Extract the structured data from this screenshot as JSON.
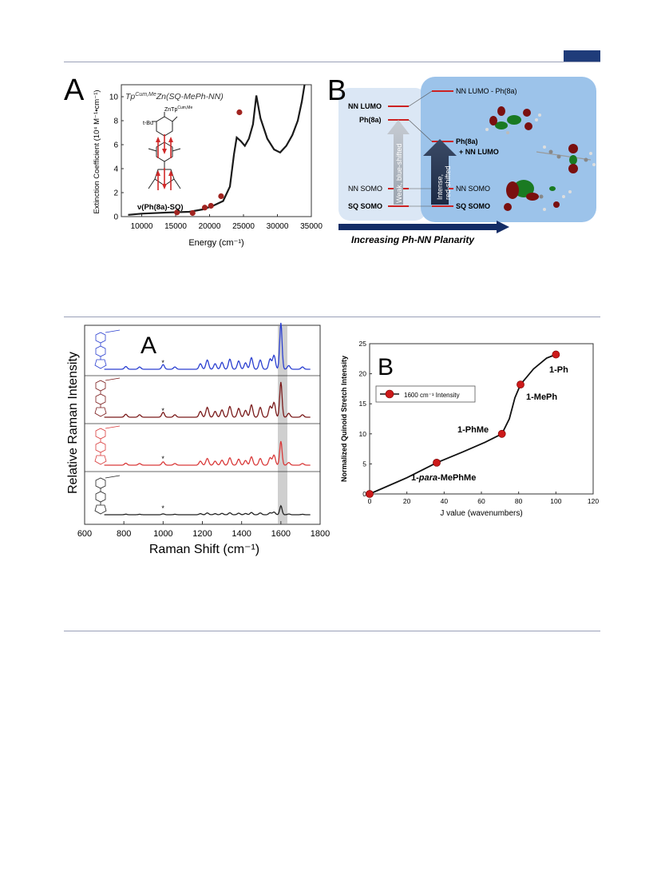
{
  "figure1": {
    "panelA": {
      "label": "A",
      "compound_title_base": "Tp",
      "compound_title_sup": "Cum,Me",
      "compound_title_rest": "Zn(SQ-MePh-NN)",
      "mol_zn": "ZnTp",
      "mol_zn_sup": "Cum,Me",
      "mol_tbu": "t-Bu",
      "mol_caption": "ν(Ph(8a)-SQ)",
      "ylabel": "Extinction Coefficient (10⁴ M⁻¹•cm⁻¹)",
      "xlabel": "Energy (cm⁻¹)",
      "xticks": [
        "10000",
        "15000",
        "20000",
        "25000",
        "30000",
        "35000"
      ],
      "yticks": [
        "0",
        "2",
        "4",
        "6",
        "8",
        "10"
      ]
    },
    "panelB": {
      "label": "B",
      "levels_left": [
        "NN LUMO",
        "Ph(8a)",
        "NN SOMO",
        "SQ SOMO"
      ],
      "levels_right": [
        "NN LUMO - Ph(8a)",
        "Ph(8a)",
        "+ NN LUMO",
        "NN SOMO",
        "SQ SOMO"
      ],
      "arrow_weak": "Weak, blue-shifted",
      "arrow_intense_1": "Intense,",
      "arrow_intense_2": "red-shifted",
      "bottom_label": "Increasing Ph-NN Planarity"
    }
  },
  "figure2": {
    "panelA": {
      "label": "A",
      "ylabel": "Relative Raman Intensity",
      "xlabel": "Raman Shift (cm⁻¹)",
      "xticks": [
        "600",
        "800",
        "1000",
        "1200",
        "1400",
        "1600",
        "1800"
      ],
      "star": "*",
      "trace_colors": [
        "#2a3fd0",
        "#7a1a1a",
        "#d93a3a",
        "#222222"
      ]
    },
    "panelB": {
      "label": "B",
      "ylabel": "Normalized Quinoid Stretch Intensity",
      "xlabel": "J value (wavenumbers)",
      "legend": "1600 cm⁻¹ Intensity",
      "point_labels": [
        "1-para-MePhMe",
        "1-PhMe",
        "1-MePh",
        "1-Ph"
      ]
    }
  },
  "chart_data": [
    {
      "type": "scatter",
      "xlabel": "J value (wavenumbers)",
      "ylabel": "Normalized Quinoid Stretch Intensity",
      "xlim": [
        0,
        120
      ],
      "ylim": [
        0,
        25
      ],
      "series": [
        {
          "name": "1600 cm⁻¹ Intensity",
          "x": [
            0,
            36,
            71,
            81,
            100
          ],
          "y": [
            0,
            5.2,
            10.0,
            18.2,
            23.2
          ]
        }
      ]
    },
    {
      "type": "scatter",
      "xlabel": "Energy (cm⁻¹)",
      "ylabel": "Extinction Coefficient (10⁴ M⁻¹•cm⁻¹)",
      "xlim": [
        7000,
        35000
      ],
      "ylim": [
        0,
        11
      ],
      "series": [
        {
          "x": [
            15200,
            17500,
            19300,
            20200,
            21700,
            24400
          ],
          "y": [
            0.35,
            0.3,
            0.75,
            0.9,
            1.7,
            8.7
          ]
        }
      ]
    }
  ]
}
